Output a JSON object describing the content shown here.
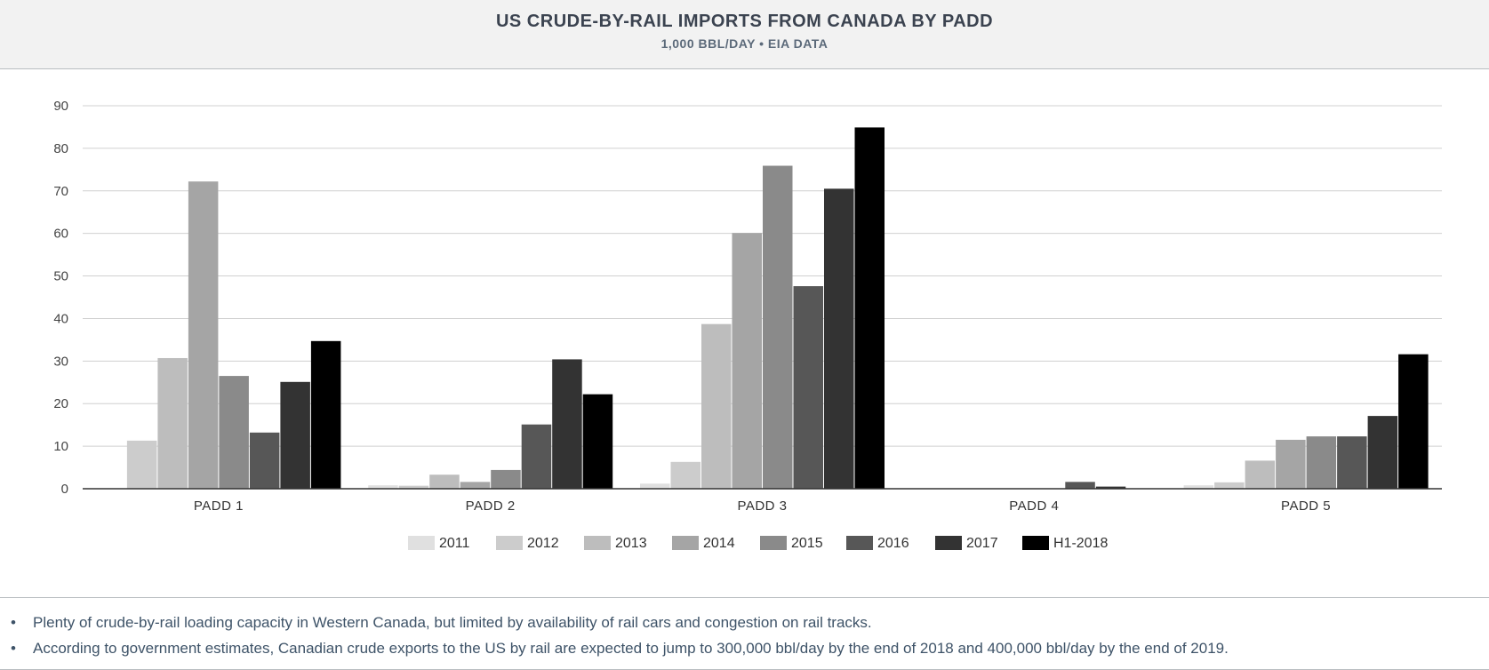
{
  "header": {
    "title": "US CRUDE-BY-RAIL IMPORTS FROM CANADA BY PADD",
    "subtitle": "1,000 BBL/DAY • EIA DATA"
  },
  "chart_data": {
    "type": "bar",
    "categories": [
      "PADD 1",
      "PADD 2",
      "PADD 3",
      "PADD 4",
      "PADD 5"
    ],
    "series": [
      {
        "name": "2011",
        "color": "#e0e0e0",
        "values": [
          0,
          0.8,
          1.2,
          0,
          0.8
        ]
      },
      {
        "name": "2012",
        "color": "#cccccc",
        "values": [
          11.3,
          0.7,
          6.3,
          0,
          1.5
        ]
      },
      {
        "name": "2013",
        "color": "#bdbdbd",
        "values": [
          30.7,
          3.3,
          38.7,
          0,
          6.6
        ]
      },
      {
        "name": "2014",
        "color": "#a5a5a5",
        "values": [
          72.2,
          1.6,
          60.1,
          0,
          11.5
        ]
      },
      {
        "name": "2015",
        "color": "#8a8a8a",
        "values": [
          26.5,
          4.4,
          75.9,
          0,
          12.3
        ]
      },
      {
        "name": "2016",
        "color": "#575757",
        "values": [
          13.2,
          15.1,
          47.6,
          1.6,
          12.3
        ]
      },
      {
        "name": "2017",
        "color": "#333333",
        "values": [
          25.1,
          30.4,
          70.5,
          0.5,
          17.1
        ]
      },
      {
        "name": "H1-2018",
        "color": "#000000",
        "values": [
          34.7,
          22.2,
          84.9,
          0,
          31.6
        ]
      }
    ],
    "y_ticks": [
      "0",
      "10",
      "20",
      "30",
      "40",
      "50",
      "60",
      "70",
      "80",
      "90"
    ],
    "ylim": [
      0,
      90
    ],
    "grid": true,
    "legend_position": "bottom-center",
    "title": "US CRUDE-BY-RAIL IMPORTS FROM CANADA BY PADD",
    "xlabel": "",
    "ylabel": ""
  },
  "notes": [
    "Plenty of crude-by-rail loading capacity in Western Canada, but limited by availability of rail cars and congestion on rail tracks.",
    "According to government estimates, Canadian crude exports to the US by rail are expected to jump to 300,000 bbl/day by the end of 2018 and 400,000 bbl/day by the end of 2019."
  ]
}
